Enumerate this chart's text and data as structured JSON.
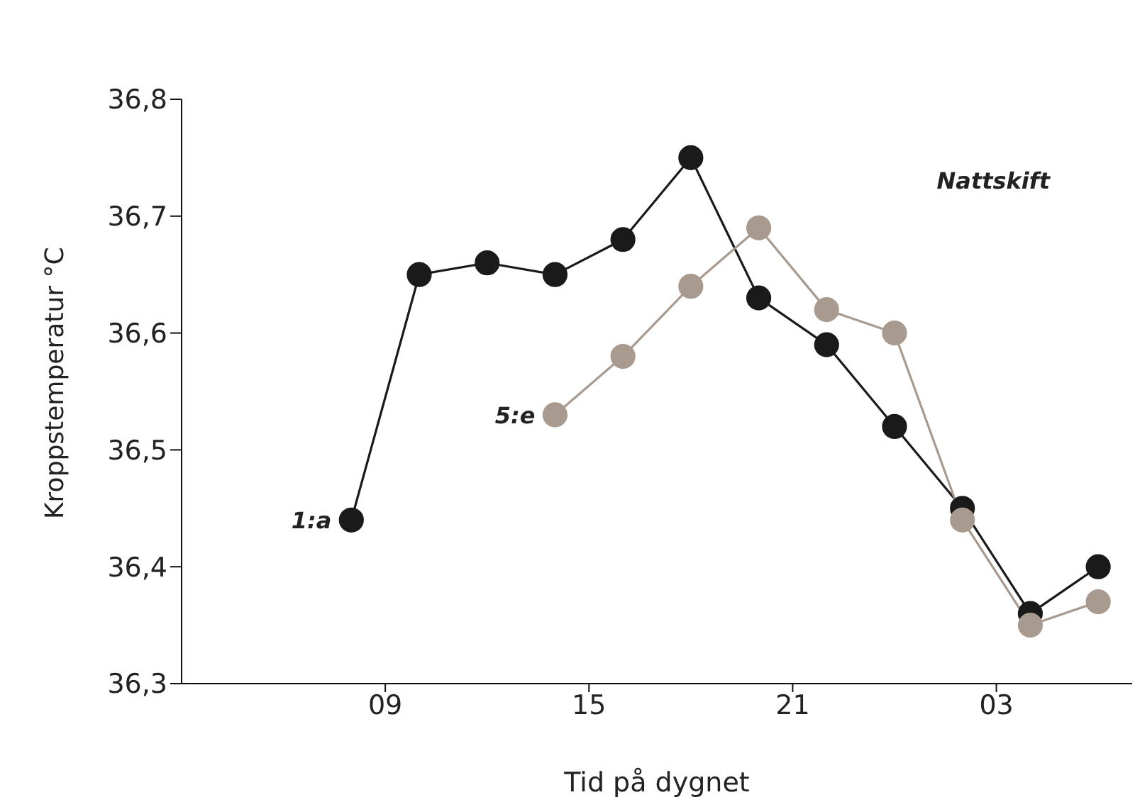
{
  "chart_data": {
    "type": "line",
    "xlabel": "Tid på dygnet",
    "ylabel": "Kroppstemperatur °C",
    "annotations": [
      "Nattskift"
    ],
    "xlim": [
      "--01-01T03:00",
      "--01-02T07:00"
    ],
    "xticks": [
      {
        "value": "--01-01T09:00",
        "label": "09"
      },
      {
        "value": "--01-01T15:00",
        "label": "15"
      },
      {
        "value": "--01-01T21:00",
        "label": "21"
      },
      {
        "value": "--01-02T03:00",
        "label": "03"
      }
    ],
    "ylim": [
      36.3,
      36.8
    ],
    "yticks": [
      {
        "value": 36.3,
        "label": "36,3"
      },
      {
        "value": 36.4,
        "label": "36,4"
      },
      {
        "value": 36.5,
        "label": "36,5"
      },
      {
        "value": 36.6,
        "label": "36,6"
      },
      {
        "value": 36.7,
        "label": "36,7"
      },
      {
        "value": 36.8,
        "label": "36,8"
      }
    ],
    "grid": false,
    "legend": false,
    "marker": "circle",
    "line_style": "solid",
    "series": [
      {
        "name": "1:a",
        "color": "#1a1a1a",
        "x": [
          "--01-01T08:00",
          "--01-01T10:00",
          "--01-01T12:00",
          "--01-01T14:00",
          "--01-01T16:00",
          "--01-01T18:00",
          "--01-01T20:00",
          "--01-01T22:00",
          "--01-02T00:00",
          "--01-02T02:00",
          "--01-02T04:00",
          "--01-02T06:00"
        ],
        "values": [
          36.44,
          36.65,
          36.66,
          36.65,
          36.68,
          36.75,
          36.63,
          36.59,
          36.52,
          36.45,
          36.36,
          36.4
        ]
      },
      {
        "name": "5:e",
        "color": "#a89a8e",
        "x": [
          "--01-01T14:00",
          "--01-01T16:00",
          "--01-01T18:00",
          "--01-01T20:00",
          "--01-01T22:00",
          "--01-02T00:00",
          "--01-02T02:00",
          "--01-02T04:00",
          "--01-02T06:00"
        ],
        "values": [
          36.53,
          36.58,
          36.64,
          36.69,
          36.62,
          36.6,
          36.44,
          36.35,
          36.37
        ]
      }
    ]
  }
}
